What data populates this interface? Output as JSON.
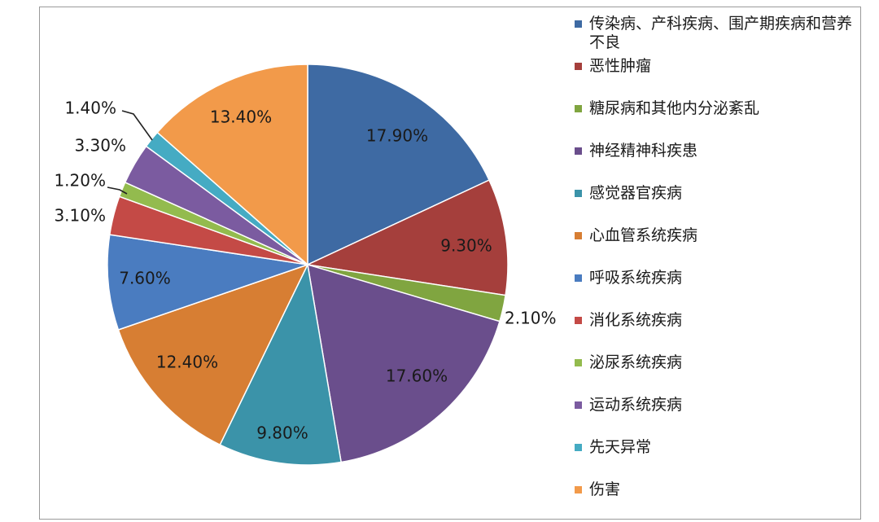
{
  "chart_data": {
    "type": "pie",
    "categories": [
      "传染病、产科疾病、围产期疾病和营养不良",
      "恶性肿瘤",
      "糖尿病和其他内分泌紊乱",
      "神经精神科疾患",
      "感觉器官疾病",
      "心血管系统疾病",
      "呼吸系统疾病",
      "消化系统疾病",
      "泌尿系统疾病",
      "运动系统疾病",
      "先天异常",
      "伤害"
    ],
    "values": [
      17.9,
      9.3,
      2.1,
      17.6,
      9.8,
      12.4,
      7.6,
      3.1,
      1.2,
      3.3,
      1.4,
      13.4
    ],
    "labels": [
      "17.90%",
      "9.30%",
      "2.10%",
      "17.60%",
      "9.80%",
      "12.40%",
      "7.60%",
      "3.10%",
      "1.20%",
      "3.30%",
      "1.40%",
      "13.40%"
    ],
    "colors": [
      "#3e6aa3",
      "#a53f3c",
      "#80a540",
      "#6a4e8c",
      "#3b93a9",
      "#d77e33",
      "#4a7cc0",
      "#c44a46",
      "#93bb4e",
      "#7b5ba0",
      "#45abc3",
      "#f29a4a"
    ],
    "legend_position": "right",
    "start": "12 o'clock, clockwise"
  }
}
